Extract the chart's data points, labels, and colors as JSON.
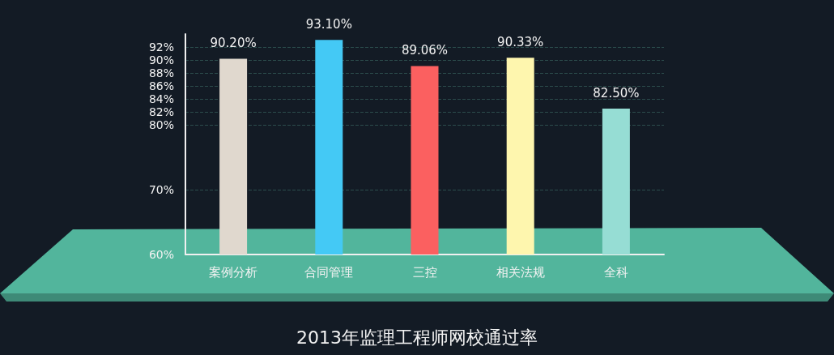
{
  "chart_data": {
    "type": "bar",
    "title": "2013年监理工程师网校通过率",
    "categories": [
      "案例分析",
      "合同管理",
      "三控",
      "相关法规",
      "全科"
    ],
    "values": [
      90.2,
      93.1,
      89.06,
      90.33,
      82.5
    ],
    "colors": [
      "#e0d8ce",
      "#44c9f5",
      "#fb6060",
      "#fef6ae",
      "#96ddd4"
    ],
    "value_labels": [
      "90.20%",
      "93.10%",
      "89.06%",
      "90.33%",
      "82.50%"
    ],
    "ylim": [
      60,
      94
    ],
    "yticks": [
      {
        "value": 60,
        "label": "60%"
      },
      {
        "value": 70,
        "label": "70%"
      },
      {
        "value": 80,
        "label": "80%"
      },
      {
        "value": 82,
        "label": "82%"
      },
      {
        "value": 84,
        "label": "84%"
      },
      {
        "value": 86,
        "label": "86%"
      },
      {
        "value": 88,
        "label": "88%"
      },
      {
        "value": 90,
        "label": "90%"
      },
      {
        "value": 92,
        "label": "92%"
      }
    ],
    "grid": "y"
  }
}
